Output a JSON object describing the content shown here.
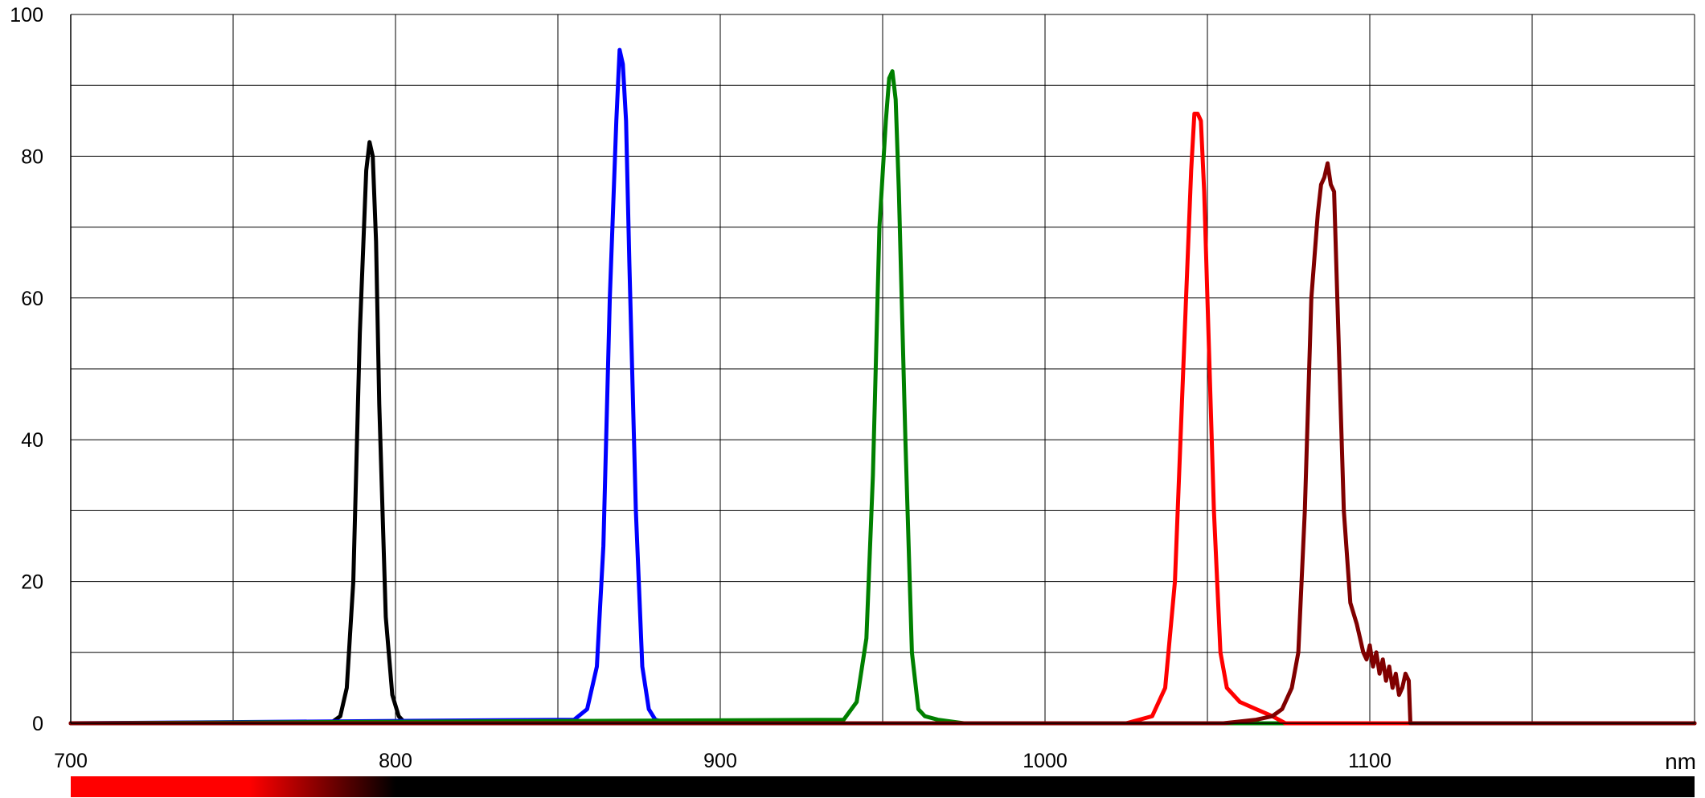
{
  "chart_data": {
    "type": "line",
    "xlabel": "nm",
    "ylabel": "",
    "xlim": [
      700,
      1200
    ],
    "ylim": [
      0,
      100
    ],
    "x_ticks": [
      700,
      800,
      900,
      1000,
      1100
    ],
    "x_tick_labels": [
      "700",
      "800",
      "900",
      "1000",
      "1100"
    ],
    "x_minor_gridlines": [
      750,
      850,
      950,
      1050,
      1150
    ],
    "y_ticks": [
      0,
      20,
      40,
      60,
      80,
      100
    ],
    "y_tick_labels": [
      "0",
      "20",
      "40",
      "60",
      "80",
      "100"
    ],
    "y_minor_gridlines": [
      10,
      30,
      50,
      70,
      90
    ],
    "grid": true,
    "legend": "none",
    "wavelength_bar": {
      "stops": [
        {
          "nm": 700,
          "color": "#ff0000"
        },
        {
          "nm": 755,
          "color": "#ff0000"
        },
        {
          "nm": 800,
          "color": "#000000"
        },
        {
          "nm": 1200,
          "color": "#000000"
        }
      ]
    },
    "series": [
      {
        "color": "#000000",
        "x": [
          700,
          780,
          783,
          785,
          787,
          789,
          791,
          792,
          793,
          794,
          795,
          797,
          799,
          801,
          803,
          806,
          900,
          1200
        ],
        "y": [
          0,
          0,
          1,
          5,
          20,
          55,
          78,
          82,
          80,
          68,
          45,
          15,
          4,
          1,
          0,
          0,
          0,
          0
        ]
      },
      {
        "color": "#0000ff",
        "x": [
          700,
          855,
          859,
          862,
          864,
          866,
          868,
          869,
          870,
          871,
          872,
          874,
          876,
          878,
          880,
          884,
          950,
          1200
        ],
        "y": [
          0,
          0.5,
          2,
          8,
          25,
          60,
          85,
          95,
          93,
          85,
          65,
          30,
          8,
          2,
          0.5,
          0,
          0,
          0
        ]
      },
      {
        "color": "#008000",
        "x": [
          700,
          938,
          942,
          945,
          947,
          949,
          951,
          952,
          953,
          954,
          955,
          957,
          959,
          961,
          963,
          967,
          975,
          1200
        ],
        "y": [
          0,
          0.5,
          3,
          12,
          35,
          70,
          85,
          91,
          92,
          88,
          75,
          40,
          10,
          2,
          1,
          0.5,
          0,
          0
        ]
      },
      {
        "color": "#ff0000",
        "x": [
          700,
          1025,
          1033,
          1037,
          1040,
          1043,
          1045,
          1046,
          1047,
          1048,
          1049,
          1050,
          1052,
          1054,
          1056,
          1060,
          1065,
          1070,
          1074,
          1200
        ],
        "y": [
          0,
          0,
          1,
          5,
          20,
          55,
          78,
          86,
          86,
          85,
          75,
          60,
          30,
          10,
          5,
          3,
          2,
          1,
          0,
          0
        ]
      },
      {
        "color": "#800000",
        "x": [
          700,
          1055,
          1065,
          1070,
          1073,
          1076,
          1078,
          1080,
          1082,
          1084,
          1085,
          1086,
          1087,
          1088,
          1089,
          1090,
          1092,
          1094,
          1096,
          1097,
          1098,
          1099,
          1100,
          1101,
          1102,
          1103,
          1104,
          1105,
          1106,
          1107,
          1108,
          1109,
          1110,
          1111,
          1112,
          1112.5,
          1113,
          1200
        ],
        "y": [
          0,
          0,
          0.5,
          1,
          2,
          5,
          10,
          30,
          60,
          72,
          76,
          77,
          79,
          76,
          75,
          60,
          30,
          17,
          14,
          12,
          10,
          9,
          11,
          8,
          10,
          7,
          9,
          6,
          8,
          5,
          7,
          4,
          5,
          7,
          6,
          0,
          0,
          0
        ]
      }
    ]
  }
}
